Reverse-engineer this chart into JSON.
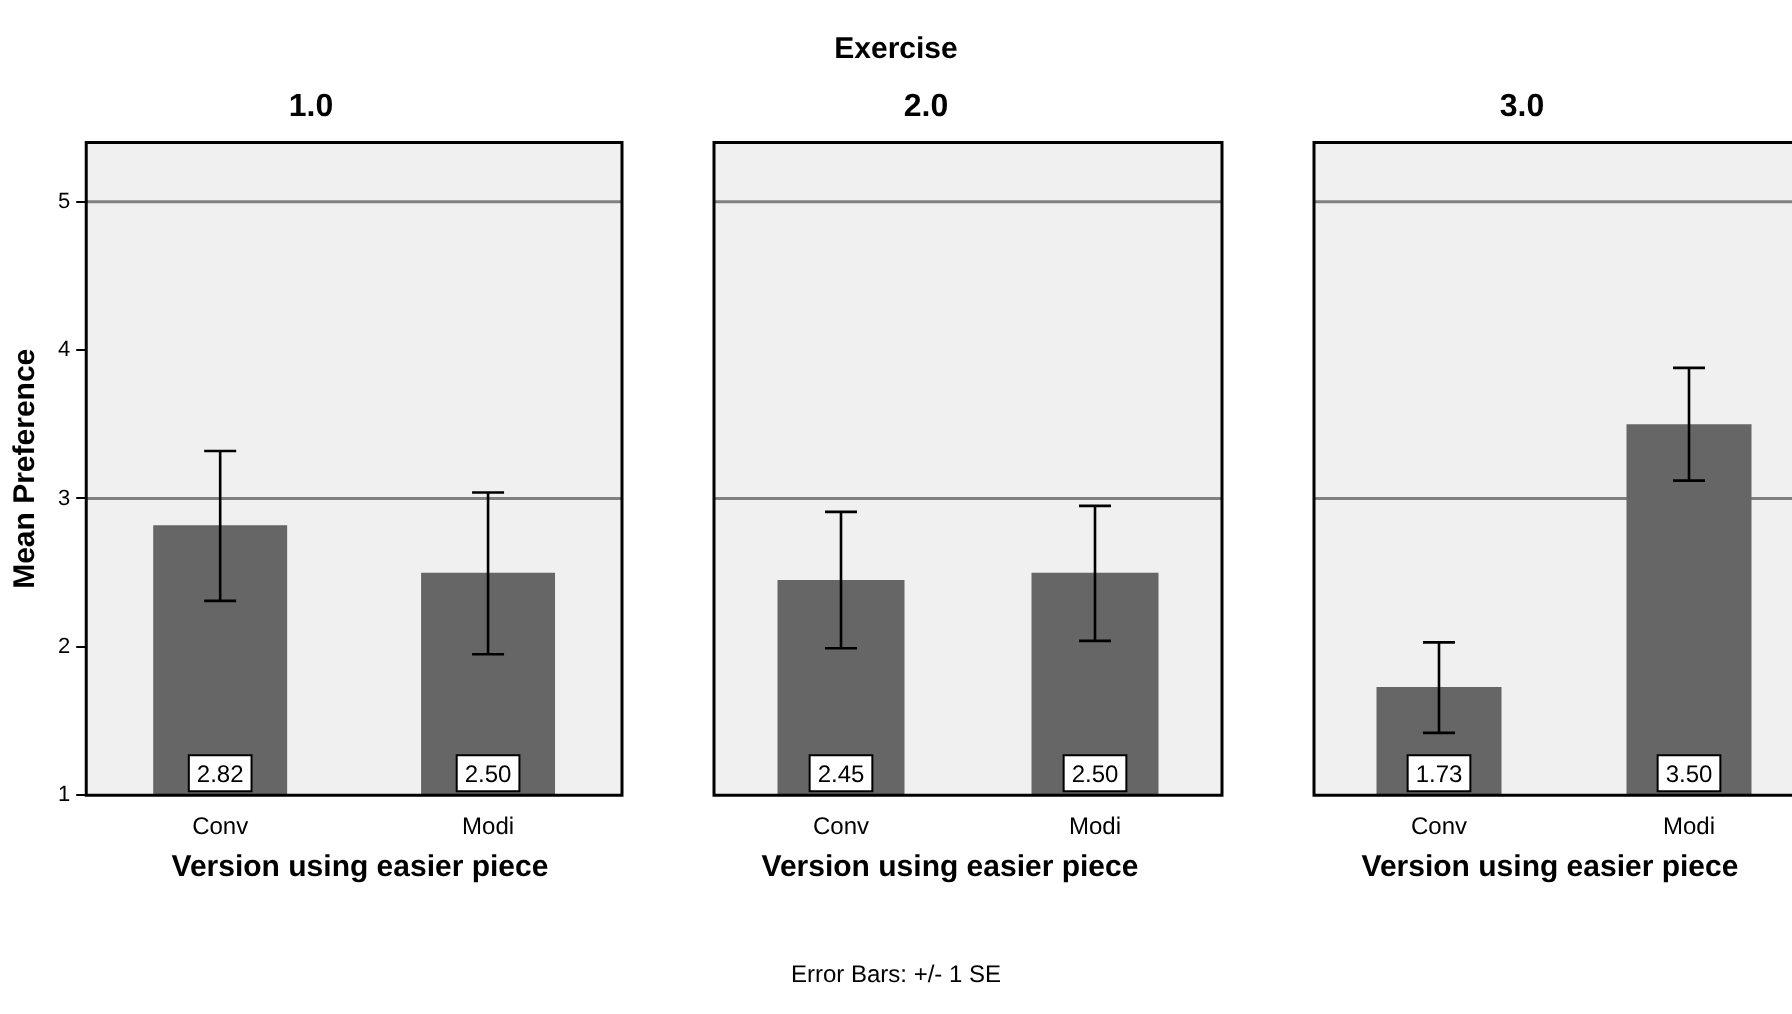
{
  "chart_data": [
    {
      "type": "bar",
      "title": "1.0",
      "xlabel": "Version using easier piece",
      "ylabel": "Mean Preference",
      "categories": [
        "Conv",
        "Modi"
      ],
      "values": [
        2.82,
        2.5
      ],
      "value_labels": [
        "2.82",
        "2.50"
      ],
      "color": "#666666",
      "errors": [
        [
          2.31,
          3.32
        ],
        [
          1.95,
          3.04
        ]
      ],
      "ylim": [
        1,
        5.4
      ],
      "yticks": [
        1,
        2,
        3,
        4,
        5
      ],
      "ref_lines": [
        {
          "axis": "y",
          "value": 3,
          "color": "#808080"
        },
        {
          "axis": "y",
          "value": 5,
          "color": "#808080"
        }
      ]
    },
    {
      "type": "bar",
      "title": "2.0",
      "xlabel": "Version using easier piece",
      "categories": [
        "Conv",
        "Modi"
      ],
      "values": [
        2.45,
        2.5
      ],
      "value_labels": [
        "2.45",
        "2.50"
      ],
      "color": "#666666",
      "errors": [
        [
          1.99,
          2.91
        ],
        [
          2.04,
          2.95
        ]
      ],
      "ylim": [
        1,
        5.4
      ],
      "yticks": [
        1,
        2,
        3,
        4,
        5
      ],
      "tick_labels": "x",
      "ref_lines": [
        {
          "axis": "y",
          "value": 3,
          "color": "#808080"
        },
        {
          "axis": "y",
          "value": 5,
          "color": "#808080"
        }
      ],
      "annotations": [
        "Exercise",
        "Error Bars: +/- 1 SE"
      ]
    },
    {
      "type": "bar",
      "title": "3.0",
      "xlabel": "Version using easier piece",
      "categories": [
        "Conv",
        "Modi"
      ],
      "values": [
        1.73,
        3.5
      ],
      "value_labels": [
        "1.73",
        "3.50"
      ],
      "color": "#666666",
      "errors": [
        [
          1.42,
          2.03
        ],
        [
          3.12,
          3.88
        ]
      ],
      "ylim": [
        1,
        5.4
      ],
      "yticks": [
        1,
        2,
        3,
        4,
        5
      ],
      "tick_labels": "x",
      "ref_lines": [
        {
          "axis": "y",
          "value": 3,
          "color": "#808080"
        },
        {
          "axis": "y",
          "value": 5,
          "color": "#808080"
        }
      ]
    }
  ]
}
